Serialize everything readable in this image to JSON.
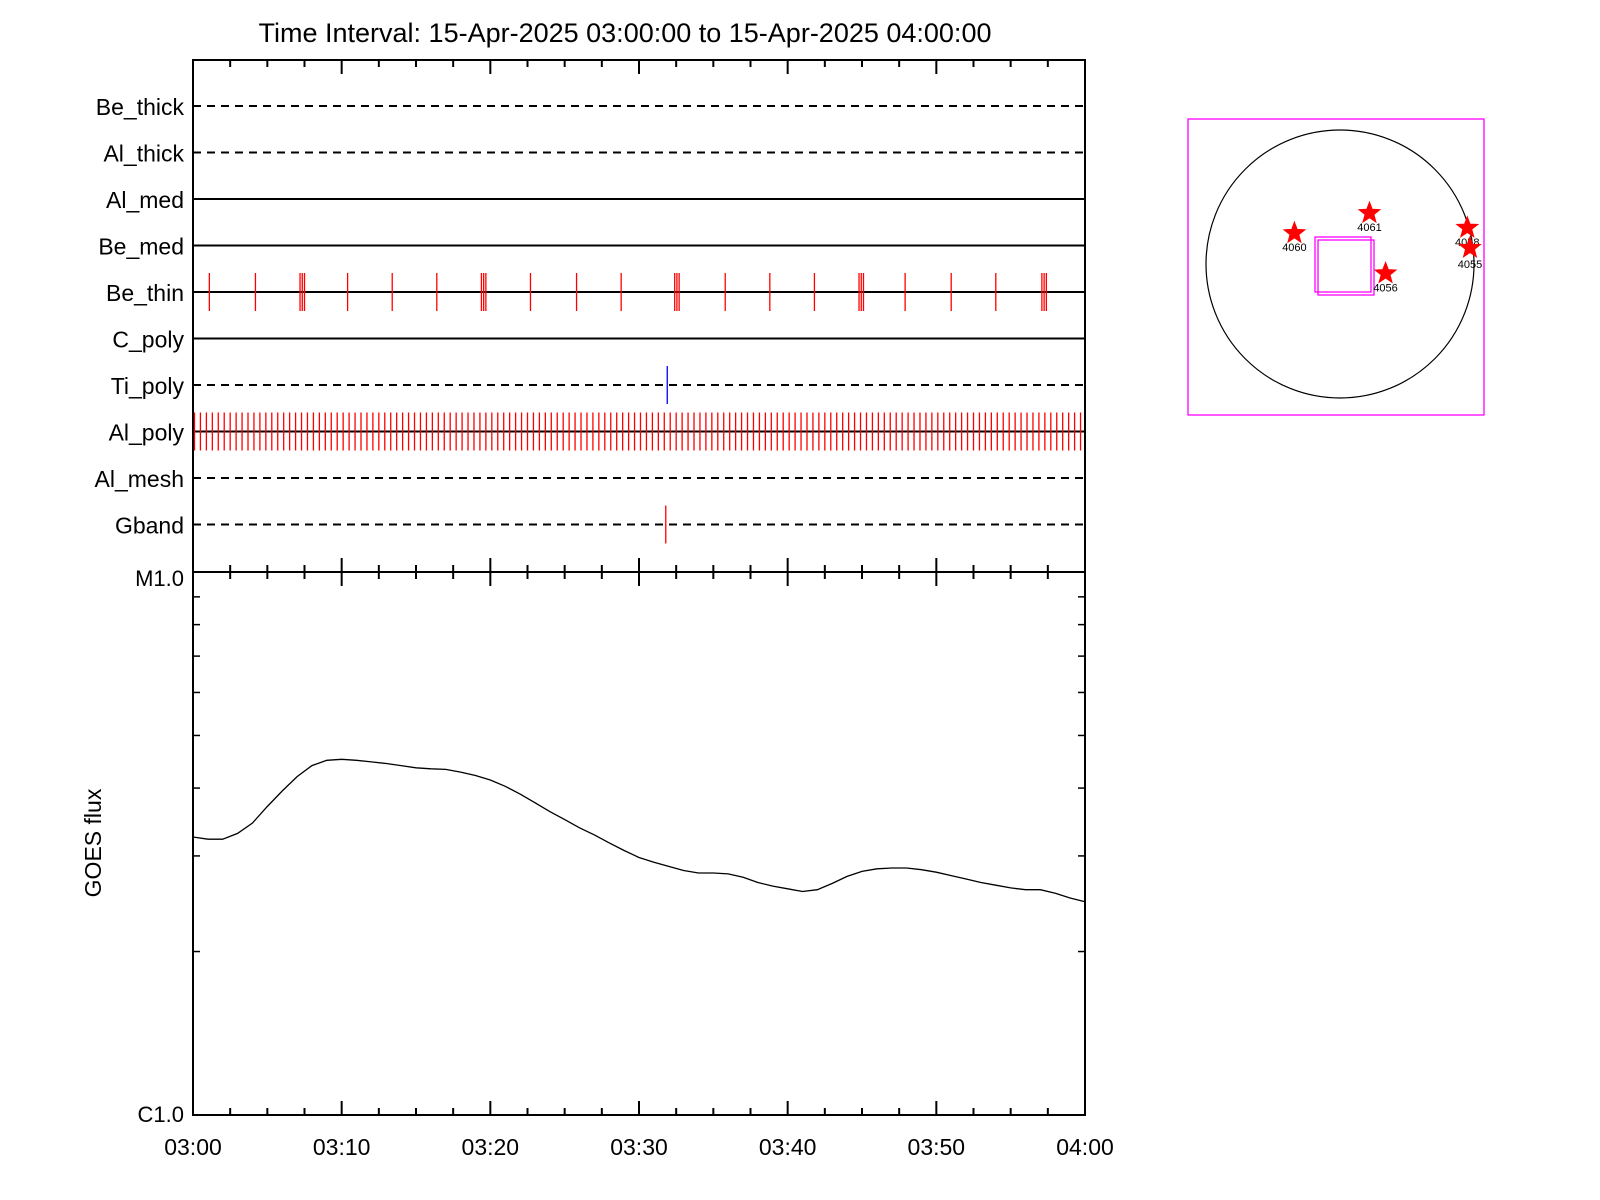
{
  "title": "Time Interval: 15-Apr-2025 03:00:00 to 15-Apr-2025 04:00:00",
  "colors": {
    "axis": "#000000",
    "event_red": "#ff0000",
    "event_blue": "#0000ff",
    "fov_magenta": "#ff00ff",
    "star_red": "#ff0000"
  },
  "chart_data": [
    {
      "type": "line",
      "name": "filter-timeline",
      "x_range_minutes": [
        0,
        60
      ],
      "x_tick_labels": [
        "03:00",
        "03:10",
        "03:20",
        "03:30",
        "03:40",
        "03:50",
        "04:00"
      ],
      "rows": [
        {
          "label": "Be_thick",
          "style": "dashed",
          "events": [],
          "event_color": "red"
        },
        {
          "label": "Al_thick",
          "style": "dashed",
          "events": [],
          "event_color": "red"
        },
        {
          "label": "Al_med",
          "style": "solid",
          "events": [],
          "event_color": "red"
        },
        {
          "label": "Be_med",
          "style": "solid",
          "events": [],
          "event_color": "red"
        },
        {
          "label": "Be_thin",
          "style": "solid",
          "event_color": "red",
          "events": [
            1.1,
            4.2,
            7.2,
            7.35,
            7.5,
            10.4,
            13.4,
            16.4,
            19.4,
            19.55,
            19.7,
            22.7,
            25.8,
            28.8,
            32.4,
            32.55,
            32.7,
            35.8,
            38.8,
            41.8,
            44.8,
            44.95,
            45.1,
            47.9,
            51.0,
            54.0,
            57.1,
            57.25,
            57.4
          ]
        },
        {
          "label": "C_poly",
          "style": "solid",
          "events": [],
          "event_color": "red"
        },
        {
          "label": "Ti_poly",
          "style": "dashed",
          "events": [
            31.9
          ],
          "event_color": "blue"
        },
        {
          "label": "Al_poly",
          "style": "solid",
          "event_color": "red",
          "event_spacing_minutes": 0.4,
          "dense_events": true
        },
        {
          "label": "Al_mesh",
          "style": "dashed",
          "events": [],
          "event_color": "red"
        },
        {
          "label": "Gband",
          "style": "dashed",
          "events": [
            31.8
          ],
          "event_color": "red"
        }
      ]
    },
    {
      "type": "line",
      "name": "goes-flux",
      "ylabel": "GOES flux",
      "y_scale": "log",
      "y_tick_labels": [
        "M1.0",
        "C1.0"
      ],
      "ylim": [
        1e-06,
        1e-05
      ],
      "x_range_minutes": [
        0,
        60
      ],
      "x_tick_labels": [
        "03:00",
        "03:10",
        "03:20",
        "03:30",
        "03:40",
        "03:50",
        "04:00"
      ],
      "x": [
        0,
        1,
        2,
        3,
        4,
        5,
        6,
        7,
        8,
        9,
        10,
        11,
        12,
        13,
        14,
        15,
        16,
        17,
        18,
        19,
        20,
        21,
        22,
        23,
        24,
        25,
        26,
        27,
        28,
        29,
        30,
        31,
        32,
        33,
        34,
        35,
        36,
        37,
        38,
        39,
        40,
        41,
        42,
        43,
        44,
        45,
        46,
        47,
        48,
        49,
        50,
        51,
        52,
        53,
        54,
        55,
        56,
        57,
        58,
        59,
        60
      ],
      "values": [
        3.25e-06,
        3.22e-06,
        3.22e-06,
        3.3e-06,
        3.45e-06,
        3.7e-06,
        3.95e-06,
        4.2e-06,
        4.4e-06,
        4.5e-06,
        4.52e-06,
        4.5e-06,
        4.47e-06,
        4.44e-06,
        4.4e-06,
        4.36e-06,
        4.34e-06,
        4.33e-06,
        4.28e-06,
        4.22e-06,
        4.14e-06,
        4.03e-06,
        3.9e-06,
        3.76e-06,
        3.62e-06,
        3.5e-06,
        3.38e-06,
        3.28e-06,
        3.17e-06,
        3.07e-06,
        2.98e-06,
        2.92e-06,
        2.87e-06,
        2.82e-06,
        2.79e-06,
        2.79e-06,
        2.78e-06,
        2.74e-06,
        2.68e-06,
        2.64e-06,
        2.61e-06,
        2.58e-06,
        2.6e-06,
        2.67e-06,
        2.75e-06,
        2.81e-06,
        2.84e-06,
        2.85e-06,
        2.85e-06,
        2.83e-06,
        2.8e-06,
        2.76e-06,
        2.72e-06,
        2.68e-06,
        2.65e-06,
        2.62e-06,
        2.6e-06,
        2.6e-06,
        2.56e-06,
        2.51e-06,
        2.47e-06
      ]
    }
  ],
  "solar_map": {
    "regions": [
      {
        "label": "4060"
      },
      {
        "label": "4061"
      },
      {
        "label": "4058"
      },
      {
        "label": "4055"
      },
      {
        "label": "4056"
      }
    ]
  }
}
